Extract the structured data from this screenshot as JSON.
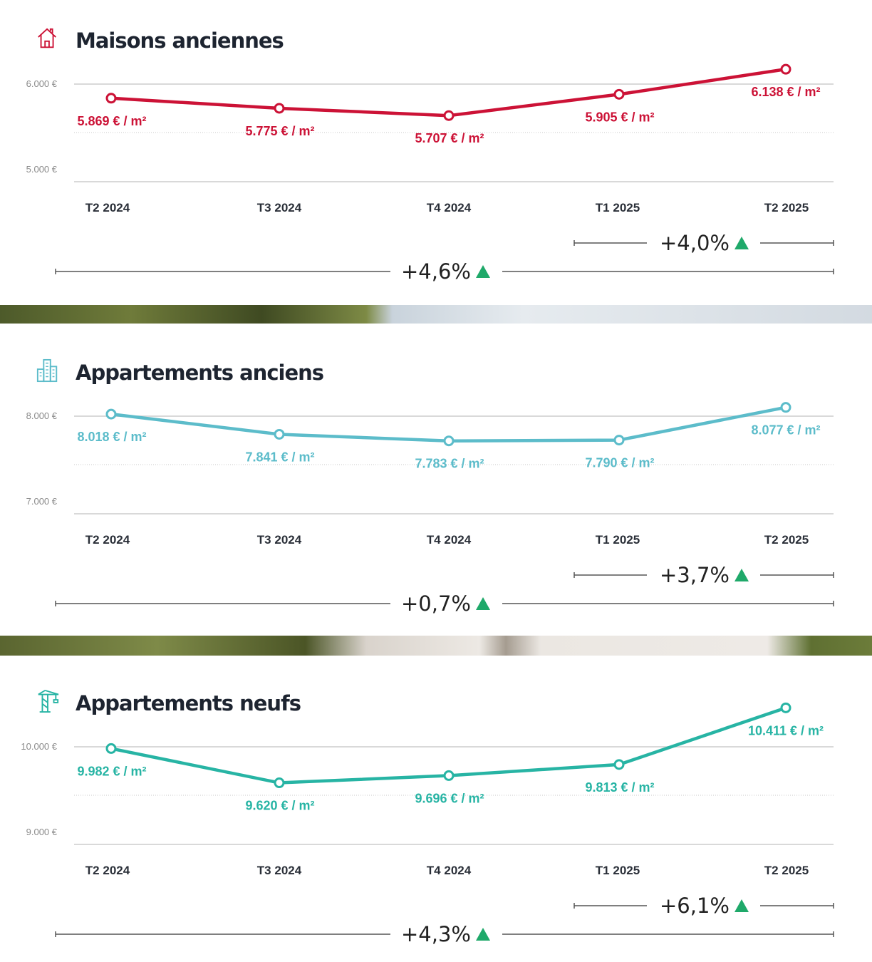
{
  "colors": {
    "maisons": "#cc1236",
    "app_anciens": "#5cbcca",
    "app_neufs": "#27b4a4",
    "up_arrow": "#1fa96a"
  },
  "chart_data": [
    {
      "type": "line",
      "title": "Maisons anciennes",
      "icon": "house-icon",
      "categories": [
        "T2 2024",
        "T3 2024",
        "T4 2024",
        "T1 2025",
        "T2 2025"
      ],
      "values": [
        5869,
        5775,
        5707,
        5905,
        6138
      ],
      "value_labels": [
        "5.869 € / m²",
        "5.775 € / m²",
        "5.707 € / m²",
        "5.905 € / m²",
        "6.138 € / m²"
      ],
      "yticks": [
        "6.000 €",
        "5.000 €"
      ],
      "ylim": [
        5000,
        6000
      ],
      "change_1q": "+4,0%",
      "change_1y": "+4,6%"
    },
    {
      "type": "line",
      "title": "Appartements anciens",
      "icon": "building-icon",
      "categories": [
        "T2 2024",
        "T3 2024",
        "T4 2024",
        "T1 2025",
        "T2 2025"
      ],
      "values": [
        8018,
        7841,
        7783,
        7790,
        8077
      ],
      "value_labels": [
        "8.018 € / m²",
        "7.841 € / m²",
        "7.783 € / m²",
        "7.790 € / m²",
        "8.077 € / m²"
      ],
      "yticks": [
        "8.000 €",
        "7.000 €"
      ],
      "ylim": [
        7000,
        8000
      ],
      "change_1q": "+3,7%",
      "change_1y": "+0,7%"
    },
    {
      "type": "line",
      "title": "Appartements neufs",
      "icon": "crane-icon",
      "categories": [
        "T2 2024",
        "T3 2024",
        "T4 2024",
        "T1 2025",
        "T2 2025"
      ],
      "values": [
        9982,
        9620,
        9696,
        9813,
        10411
      ],
      "value_labels": [
        "9.982 € / m²",
        "9.620 € / m²",
        "9.696 € / m²",
        "9.813 € / m²",
        "10.411 € / m²"
      ],
      "yticks": [
        "10.000 €",
        "9.000 €"
      ],
      "ylim": [
        9000,
        10000
      ],
      "change_1q": "+6,1%",
      "change_1y": "+4,3%"
    }
  ]
}
